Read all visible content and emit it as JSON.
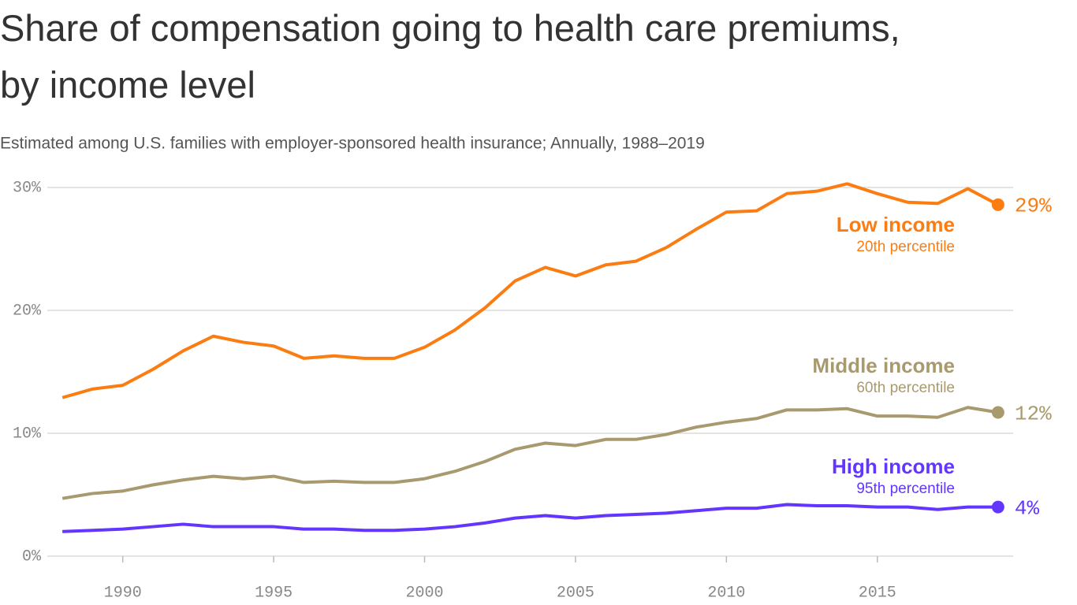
{
  "chart_data": {
    "type": "line",
    "title": "Share of compensation going to health care premiums, by income level",
    "subtitle": "Estimated among U.S. families with employer-sponsored health insurance; Annually, 1988–2019",
    "x": [
      1988,
      1989,
      1990,
      1991,
      1992,
      1993,
      1994,
      1995,
      1996,
      1997,
      1998,
      1999,
      2000,
      2001,
      2002,
      2003,
      2004,
      2005,
      2006,
      2007,
      2008,
      2009,
      2010,
      2011,
      2012,
      2013,
      2014,
      2015,
      2016,
      2017,
      2018,
      2019
    ],
    "xlim": [
      1987.5,
      2019.5
    ],
    "xticks": [
      1990,
      1995,
      2000,
      2005,
      2010,
      2015
    ],
    "ylim": [
      0,
      30
    ],
    "yticks": [
      {
        "value": 0,
        "label": "0%"
      },
      {
        "value": 10,
        "label": "10%"
      },
      {
        "value": 20,
        "label": "20%"
      },
      {
        "value": 30,
        "label": "30%"
      }
    ],
    "grid": true,
    "series": [
      {
        "name": "Low income",
        "note": "20th percentile",
        "color": "#fb7d12",
        "values": [
          12.9,
          13.6,
          13.9,
          15.2,
          16.7,
          17.9,
          17.4,
          17.1,
          16.1,
          16.3,
          16.1,
          16.1,
          17.0,
          18.4,
          20.2,
          22.4,
          23.5,
          22.8,
          23.7,
          24.0,
          25.1,
          26.6,
          28.0,
          28.1,
          29.5,
          29.7,
          30.3,
          29.5,
          28.8,
          28.7,
          29.9,
          28.6
        ],
        "value_labels": [
          null,
          null,
          null,
          null,
          null,
          null,
          null,
          null,
          null,
          null,
          null,
          null,
          null,
          null,
          null,
          null,
          null,
          null,
          null,
          null,
          null,
          null,
          null,
          null,
          null,
          null,
          null,
          null,
          null,
          null,
          null,
          "29%"
        ]
      },
      {
        "name": "Middle income",
        "note": "60th percentile",
        "color": "#a89a6e",
        "values": [
          4.7,
          5.1,
          5.3,
          5.8,
          6.2,
          6.5,
          6.3,
          6.5,
          6.0,
          6.1,
          6.0,
          6.0,
          6.3,
          6.9,
          7.7,
          8.7,
          9.2,
          9.0,
          9.5,
          9.5,
          9.9,
          10.5,
          10.9,
          11.2,
          11.9,
          11.9,
          12.0,
          11.4,
          11.4,
          11.3,
          12.1,
          11.7
        ],
        "value_labels": [
          null,
          null,
          null,
          null,
          null,
          null,
          null,
          null,
          null,
          null,
          null,
          null,
          null,
          null,
          null,
          null,
          null,
          null,
          null,
          null,
          null,
          null,
          null,
          null,
          null,
          null,
          null,
          null,
          null,
          null,
          null,
          "12%"
        ]
      },
      {
        "name": "High income",
        "note": "95th percentile",
        "color": "#6236ff",
        "values": [
          2.0,
          2.1,
          2.2,
          2.4,
          2.6,
          2.4,
          2.4,
          2.4,
          2.2,
          2.2,
          2.1,
          2.1,
          2.2,
          2.4,
          2.7,
          3.1,
          3.3,
          3.1,
          3.3,
          3.4,
          3.5,
          3.7,
          3.9,
          3.9,
          4.2,
          4.1,
          4.1,
          4.0,
          4.0,
          3.8,
          4.0,
          4.0
        ],
        "value_labels": [
          null,
          null,
          null,
          null,
          null,
          null,
          null,
          null,
          null,
          null,
          null,
          null,
          null,
          null,
          null,
          null,
          null,
          null,
          null,
          null,
          null,
          null,
          null,
          null,
          null,
          null,
          null,
          null,
          null,
          null,
          null,
          "4%"
        ]
      }
    ]
  }
}
